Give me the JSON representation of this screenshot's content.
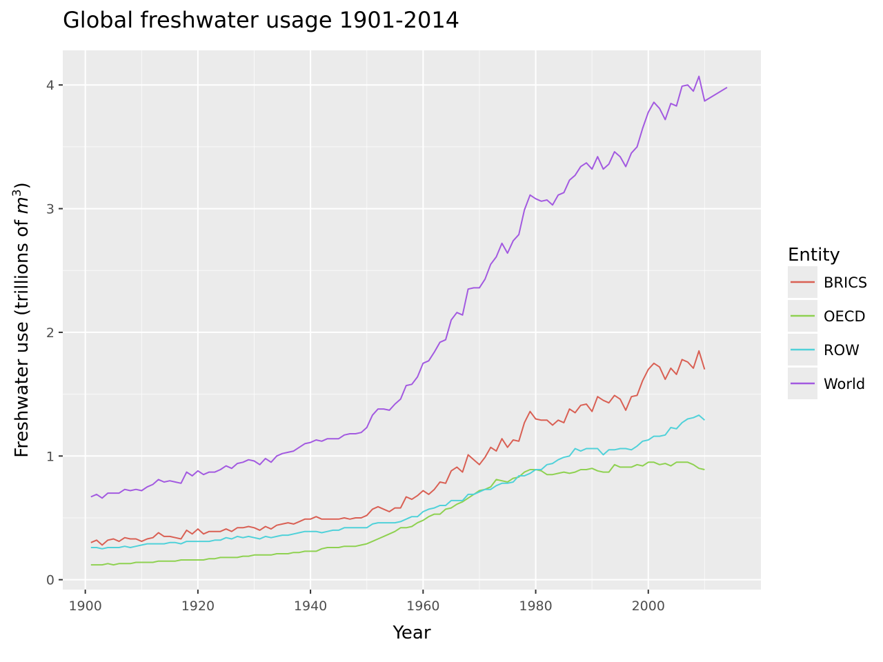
{
  "chart_data": {
    "type": "line",
    "title": "Global freshwater usage 1901-2014",
    "xlabel": "Year",
    "ylabel_prefix": "Freshwater use (trillions of ",
    "ylabel_var": "m",
    "ylabel_sup": "3",
    "ylabel_suffix": ")",
    "xlim": [
      1896,
      2020
    ],
    "ylim": [
      -0.08,
      4.28
    ],
    "x_ticks": [
      1900,
      1920,
      1940,
      1960,
      1980,
      2000
    ],
    "y_ticks": [
      0,
      1,
      2,
      3,
      4
    ],
    "grid": true,
    "legend": {
      "title": "Entity",
      "position": "right"
    },
    "series": [
      {
        "name": "BRICS",
        "color": "#D95F53",
        "x": [
          1901,
          1902,
          1903,
          1904,
          1905,
          1906,
          1907,
          1908,
          1909,
          1910,
          1911,
          1912,
          1913,
          1914,
          1915,
          1916,
          1917,
          1918,
          1919,
          1920,
          1921,
          1922,
          1923,
          1924,
          1925,
          1926,
          1927,
          1928,
          1929,
          1930,
          1931,
          1932,
          1933,
          1934,
          1935,
          1936,
          1937,
          1938,
          1939,
          1940,
          1941,
          1942,
          1943,
          1944,
          1945,
          1946,
          1947,
          1948,
          1949,
          1950,
          1951,
          1952,
          1953,
          1954,
          1955,
          1956,
          1957,
          1958,
          1959,
          1960,
          1961,
          1962,
          1963,
          1964,
          1965,
          1966,
          1967,
          1968,
          1969,
          1970,
          1971,
          1972,
          1973,
          1974,
          1975,
          1976,
          1977,
          1978,
          1979,
          1980,
          1981,
          1982,
          1983,
          1984,
          1985,
          1986,
          1987,
          1988,
          1989,
          1990,
          1991,
          1992,
          1993,
          1994,
          1995,
          1996,
          1997,
          1998,
          1999,
          2000,
          2001,
          2002,
          2003,
          2004,
          2005,
          2006,
          2007,
          2008,
          2009,
          2010
        ],
        "y": [
          0.3,
          0.32,
          0.28,
          0.32,
          0.33,
          0.31,
          0.34,
          0.33,
          0.33,
          0.31,
          0.33,
          0.34,
          0.38,
          0.35,
          0.35,
          0.34,
          0.33,
          0.4,
          0.37,
          0.41,
          0.37,
          0.39,
          0.39,
          0.39,
          0.41,
          0.39,
          0.42,
          0.42,
          0.43,
          0.42,
          0.4,
          0.43,
          0.41,
          0.44,
          0.45,
          0.46,
          0.45,
          0.47,
          0.49,
          0.49,
          0.51,
          0.49,
          0.49,
          0.49,
          0.49,
          0.5,
          0.49,
          0.5,
          0.5,
          0.52,
          0.57,
          0.59,
          0.57,
          0.55,
          0.58,
          0.58,
          0.67,
          0.65,
          0.68,
          0.72,
          0.69,
          0.73,
          0.79,
          0.78,
          0.88,
          0.91,
          0.87,
          1.01,
          0.97,
          0.93,
          0.99,
          1.07,
          1.04,
          1.14,
          1.07,
          1.13,
          1.12,
          1.27,
          1.36,
          1.3,
          1.29,
          1.29,
          1.25,
          1.29,
          1.27,
          1.38,
          1.35,
          1.41,
          1.42,
          1.36,
          1.48,
          1.45,
          1.43,
          1.49,
          1.46,
          1.37,
          1.48,
          1.49,
          1.61,
          1.7,
          1.75,
          1.72,
          1.62,
          1.71,
          1.66,
          1.78,
          1.76,
          1.71,
          1.85,
          1.7
        ]
      },
      {
        "name": "OECD",
        "color": "#8ED150",
        "x": [
          1901,
          1902,
          1903,
          1904,
          1905,
          1906,
          1907,
          1908,
          1909,
          1910,
          1911,
          1912,
          1913,
          1914,
          1915,
          1916,
          1917,
          1918,
          1919,
          1920,
          1921,
          1922,
          1923,
          1924,
          1925,
          1926,
          1927,
          1928,
          1929,
          1930,
          1931,
          1932,
          1933,
          1934,
          1935,
          1936,
          1937,
          1938,
          1939,
          1940,
          1941,
          1942,
          1943,
          1944,
          1945,
          1946,
          1947,
          1948,
          1949,
          1950,
          1951,
          1952,
          1953,
          1954,
          1955,
          1956,
          1957,
          1958,
          1959,
          1960,
          1961,
          1962,
          1963,
          1964,
          1965,
          1966,
          1967,
          1968,
          1969,
          1970,
          1971,
          1972,
          1973,
          1974,
          1975,
          1976,
          1977,
          1978,
          1979,
          1980,
          1981,
          1982,
          1983,
          1984,
          1985,
          1986,
          1987,
          1988,
          1989,
          1990,
          1991,
          1992,
          1993,
          1994,
          1995,
          1996,
          1997,
          1998,
          1999,
          2000,
          2001,
          2002,
          2003,
          2004,
          2005,
          2006,
          2007,
          2008,
          2009,
          2010
        ],
        "y": [
          0.12,
          0.12,
          0.12,
          0.13,
          0.12,
          0.13,
          0.13,
          0.13,
          0.14,
          0.14,
          0.14,
          0.14,
          0.15,
          0.15,
          0.15,
          0.15,
          0.16,
          0.16,
          0.16,
          0.16,
          0.16,
          0.17,
          0.17,
          0.18,
          0.18,
          0.18,
          0.18,
          0.19,
          0.19,
          0.2,
          0.2,
          0.2,
          0.2,
          0.21,
          0.21,
          0.21,
          0.22,
          0.22,
          0.23,
          0.23,
          0.23,
          0.25,
          0.26,
          0.26,
          0.26,
          0.27,
          0.27,
          0.27,
          0.28,
          0.29,
          0.31,
          0.33,
          0.35,
          0.37,
          0.39,
          0.42,
          0.42,
          0.43,
          0.46,
          0.48,
          0.51,
          0.53,
          0.53,
          0.57,
          0.58,
          0.61,
          0.63,
          0.66,
          0.69,
          0.72,
          0.73,
          0.75,
          0.81,
          0.8,
          0.79,
          0.82,
          0.83,
          0.87,
          0.89,
          0.89,
          0.88,
          0.85,
          0.85,
          0.86,
          0.87,
          0.86,
          0.87,
          0.89,
          0.89,
          0.9,
          0.88,
          0.87,
          0.87,
          0.93,
          0.91,
          0.91,
          0.91,
          0.93,
          0.92,
          0.95,
          0.95,
          0.93,
          0.94,
          0.92,
          0.95,
          0.95,
          0.95,
          0.93,
          0.9,
          0.89
        ]
      },
      {
        "name": "ROW",
        "color": "#4FD1D9",
        "x": [
          1901,
          1902,
          1903,
          1904,
          1905,
          1906,
          1907,
          1908,
          1909,
          1910,
          1911,
          1912,
          1913,
          1914,
          1915,
          1916,
          1917,
          1918,
          1919,
          1920,
          1921,
          1922,
          1923,
          1924,
          1925,
          1926,
          1927,
          1928,
          1929,
          1930,
          1931,
          1932,
          1933,
          1934,
          1935,
          1936,
          1937,
          1938,
          1939,
          1940,
          1941,
          1942,
          1943,
          1944,
          1945,
          1946,
          1947,
          1948,
          1949,
          1950,
          1951,
          1952,
          1953,
          1954,
          1955,
          1956,
          1957,
          1958,
          1959,
          1960,
          1961,
          1962,
          1963,
          1964,
          1965,
          1966,
          1967,
          1968,
          1969,
          1970,
          1971,
          1972,
          1973,
          1974,
          1975,
          1976,
          1977,
          1978,
          1979,
          1980,
          1981,
          1982,
          1983,
          1984,
          1985,
          1986,
          1987,
          1988,
          1989,
          1990,
          1991,
          1992,
          1993,
          1994,
          1995,
          1996,
          1997,
          1998,
          1999,
          2000,
          2001,
          2002,
          2003,
          2004,
          2005,
          2006,
          2007,
          2008,
          2009,
          2010
        ],
        "y": [
          0.26,
          0.26,
          0.25,
          0.26,
          0.26,
          0.26,
          0.27,
          0.26,
          0.27,
          0.28,
          0.29,
          0.29,
          0.29,
          0.29,
          0.3,
          0.3,
          0.29,
          0.31,
          0.31,
          0.31,
          0.31,
          0.31,
          0.32,
          0.32,
          0.34,
          0.33,
          0.35,
          0.34,
          0.35,
          0.34,
          0.33,
          0.35,
          0.34,
          0.35,
          0.36,
          0.36,
          0.37,
          0.38,
          0.39,
          0.39,
          0.39,
          0.38,
          0.39,
          0.4,
          0.4,
          0.42,
          0.42,
          0.42,
          0.42,
          0.42,
          0.45,
          0.46,
          0.46,
          0.46,
          0.46,
          0.47,
          0.49,
          0.51,
          0.51,
          0.55,
          0.57,
          0.58,
          0.6,
          0.6,
          0.64,
          0.64,
          0.64,
          0.69,
          0.69,
          0.71,
          0.73,
          0.73,
          0.76,
          0.78,
          0.78,
          0.79,
          0.84,
          0.84,
          0.86,
          0.89,
          0.89,
          0.93,
          0.94,
          0.97,
          0.99,
          1.0,
          1.06,
          1.04,
          1.06,
          1.06,
          1.06,
          1.01,
          1.05,
          1.05,
          1.06,
          1.06,
          1.05,
          1.08,
          1.12,
          1.13,
          1.16,
          1.16,
          1.17,
          1.23,
          1.22,
          1.27,
          1.3,
          1.31,
          1.33,
          1.29
        ]
      },
      {
        "name": "World",
        "color": "#A259E0",
        "x": [
          1901,
          1902,
          1903,
          1904,
          1905,
          1906,
          1907,
          1908,
          1909,
          1910,
          1911,
          1912,
          1913,
          1914,
          1915,
          1916,
          1917,
          1918,
          1919,
          1920,
          1921,
          1922,
          1923,
          1924,
          1925,
          1926,
          1927,
          1928,
          1929,
          1930,
          1931,
          1932,
          1933,
          1934,
          1935,
          1936,
          1937,
          1938,
          1939,
          1940,
          1941,
          1942,
          1943,
          1944,
          1945,
          1946,
          1947,
          1948,
          1949,
          1950,
          1951,
          1952,
          1953,
          1954,
          1955,
          1956,
          1957,
          1958,
          1959,
          1960,
          1961,
          1962,
          1963,
          1964,
          1965,
          1966,
          1967,
          1968,
          1969,
          1970,
          1971,
          1972,
          1973,
          1974,
          1975,
          1976,
          1977,
          1978,
          1979,
          1980,
          1981,
          1982,
          1983,
          1984,
          1985,
          1986,
          1987,
          1988,
          1989,
          1990,
          1991,
          1992,
          1993,
          1994,
          1995,
          1996,
          1997,
          1998,
          1999,
          2000,
          2001,
          2002,
          2003,
          2004,
          2005,
          2006,
          2007,
          2008,
          2009,
          2010,
          2014
        ],
        "y": [
          0.67,
          0.69,
          0.66,
          0.7,
          0.7,
          0.7,
          0.73,
          0.72,
          0.73,
          0.72,
          0.75,
          0.77,
          0.81,
          0.79,
          0.8,
          0.79,
          0.78,
          0.87,
          0.84,
          0.88,
          0.85,
          0.87,
          0.87,
          0.89,
          0.92,
          0.9,
          0.94,
          0.95,
          0.97,
          0.96,
          0.93,
          0.98,
          0.95,
          1.0,
          1.02,
          1.03,
          1.04,
          1.07,
          1.1,
          1.11,
          1.13,
          1.12,
          1.14,
          1.14,
          1.14,
          1.17,
          1.18,
          1.18,
          1.19,
          1.23,
          1.33,
          1.38,
          1.38,
          1.37,
          1.42,
          1.46,
          1.57,
          1.58,
          1.64,
          1.75,
          1.77,
          1.84,
          1.92,
          1.94,
          2.1,
          2.16,
          2.14,
          2.35,
          2.36,
          2.36,
          2.43,
          2.55,
          2.61,
          2.72,
          2.64,
          2.74,
          2.79,
          2.99,
          3.11,
          3.08,
          3.06,
          3.07,
          3.03,
          3.11,
          3.13,
          3.23,
          3.27,
          3.34,
          3.37,
          3.32,
          3.42,
          3.32,
          3.36,
          3.46,
          3.42,
          3.34,
          3.45,
          3.5,
          3.65,
          3.78,
          3.86,
          3.81,
          3.72,
          3.85,
          3.83,
          3.99,
          4.0,
          3.95,
          4.07,
          3.87,
          3.98
        ]
      }
    ]
  }
}
